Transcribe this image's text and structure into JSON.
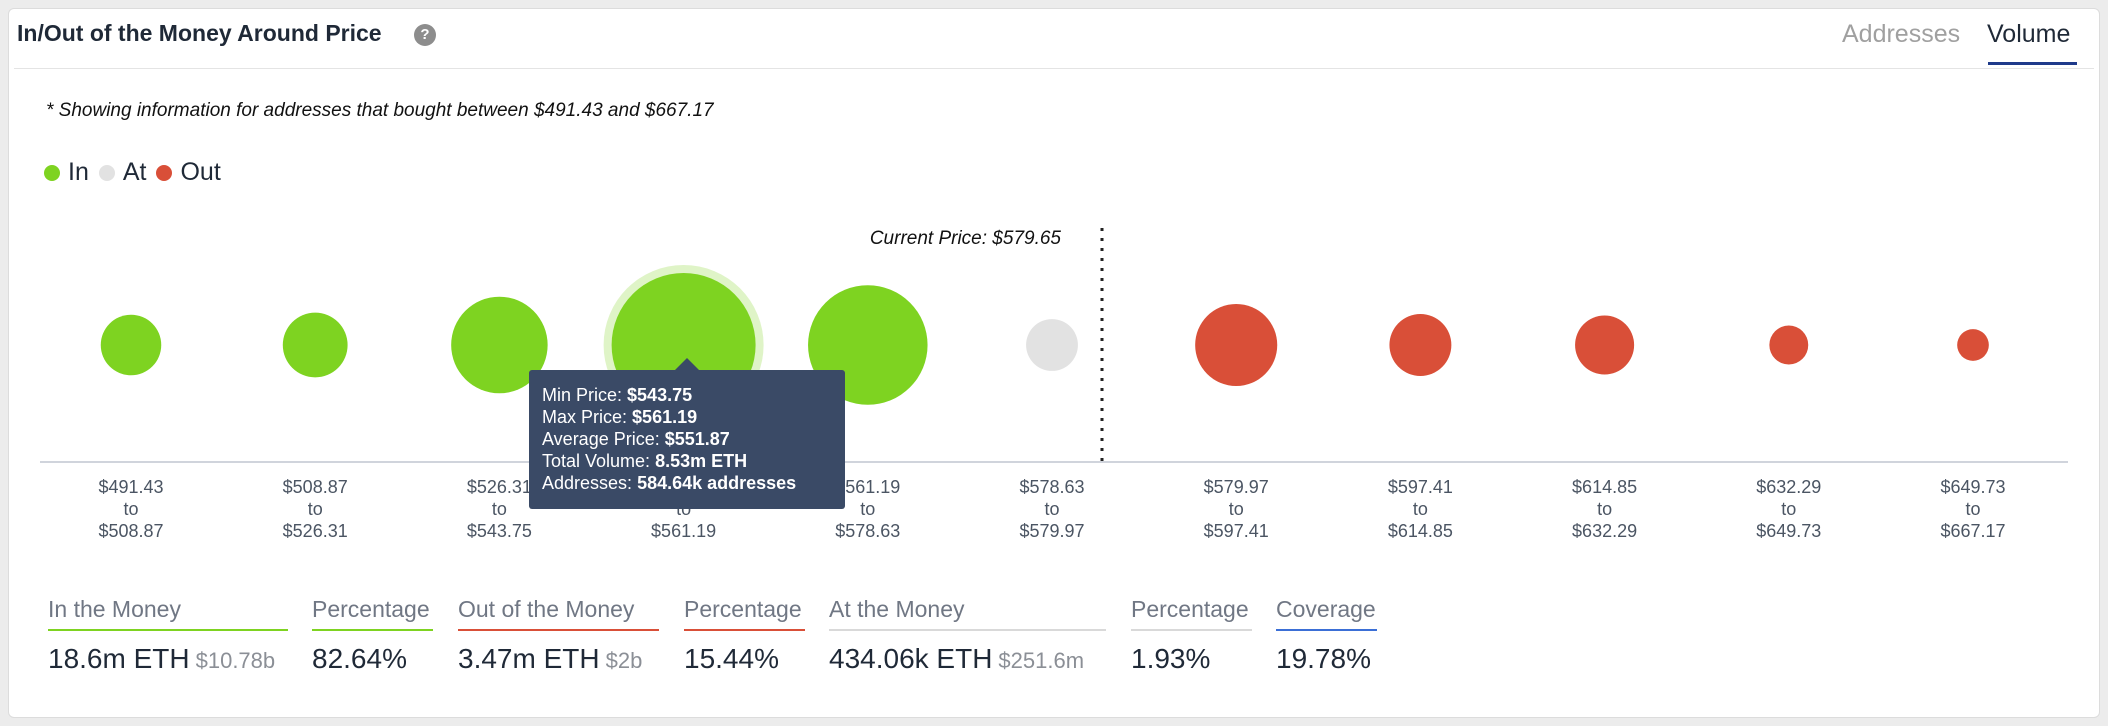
{
  "header": {
    "title": "In/Out of the Money Around Price",
    "help_icon": "question-icon",
    "tabs": [
      {
        "label": "Addresses",
        "active": false
      },
      {
        "label": "Volume",
        "active": true
      }
    ]
  },
  "note": "* Showing information for addresses that bought between $491.43 and $667.17",
  "colors": {
    "in": "#7ed321",
    "at": "#e2e2e2",
    "out": "#d94f38",
    "coverage": "#3b6fd6"
  },
  "chart_data": {
    "type": "bubble",
    "legend": [
      {
        "label": "In",
        "color": "#7ed321"
      },
      {
        "label": "At",
        "color": "#e2e2e2"
      },
      {
        "label": "Out",
        "color": "#d94f38"
      }
    ],
    "current_price_label": "Current Price: $579.65",
    "current_price": 579.65,
    "buckets": [
      {
        "from": "$491.43",
        "to_word": "to",
        "to": "$508.87",
        "status": "in",
        "size": 0.42
      },
      {
        "from": "$508.87",
        "to_word": "to",
        "to": "$526.31",
        "status": "in",
        "size": 0.45
      },
      {
        "from": "$526.31",
        "to_word": "to",
        "to": "$543.75",
        "status": "in",
        "size": 0.67
      },
      {
        "from": "$543.75",
        "to_word": "to",
        "to": "$561.19",
        "status": "in",
        "size": 1.0,
        "highlighted": true
      },
      {
        "from": "$561.19",
        "to_word": "to",
        "to": "$578.63",
        "status": "in",
        "size": 0.83
      },
      {
        "from": "$578.63",
        "to_word": "to",
        "to": "$579.97",
        "status": "at",
        "size": 0.36
      },
      {
        "from": "$579.97",
        "to_word": "to",
        "to": "$597.41",
        "status": "out",
        "size": 0.57
      },
      {
        "from": "$597.41",
        "to_word": "to",
        "to": "$614.85",
        "status": "out",
        "size": 0.43
      },
      {
        "from": "$614.85",
        "to_word": "to",
        "to": "$632.29",
        "status": "out",
        "size": 0.41
      },
      {
        "from": "$632.29",
        "to_word": "to",
        "to": "$649.73",
        "status": "out",
        "size": 0.27
      },
      {
        "from": "$649.73",
        "to_word": "to",
        "to": "$667.17",
        "status": "out",
        "size": 0.22
      }
    ]
  },
  "tooltip": {
    "min_label": "Min Price:",
    "min_value": "$543.75",
    "max_label": "Max Price:",
    "max_value": "$561.19",
    "avg_label": "Average Price:",
    "avg_value": "$551.87",
    "vol_label": "Total Volume:",
    "vol_value": "8.53m ETH",
    "addr_label": "Addresses:",
    "addr_value": "584.64k addresses"
  },
  "stats": {
    "in_label": "In the Money",
    "in_value": "18.6m ETH",
    "in_usd": "$10.78b",
    "in_pct_label": "Percentage",
    "in_pct": "82.64%",
    "out_label": "Out of the Money",
    "out_value": "3.47m ETH",
    "out_usd": "$2b",
    "out_pct_label": "Percentage",
    "out_pct": "15.44%",
    "at_label": "At the Money",
    "at_value": "434.06k ETH",
    "at_usd": "$251.6m",
    "at_pct_label": "Percentage",
    "at_pct": "1.93%",
    "cov_label": "Coverage",
    "cov_pct": "19.78%"
  }
}
